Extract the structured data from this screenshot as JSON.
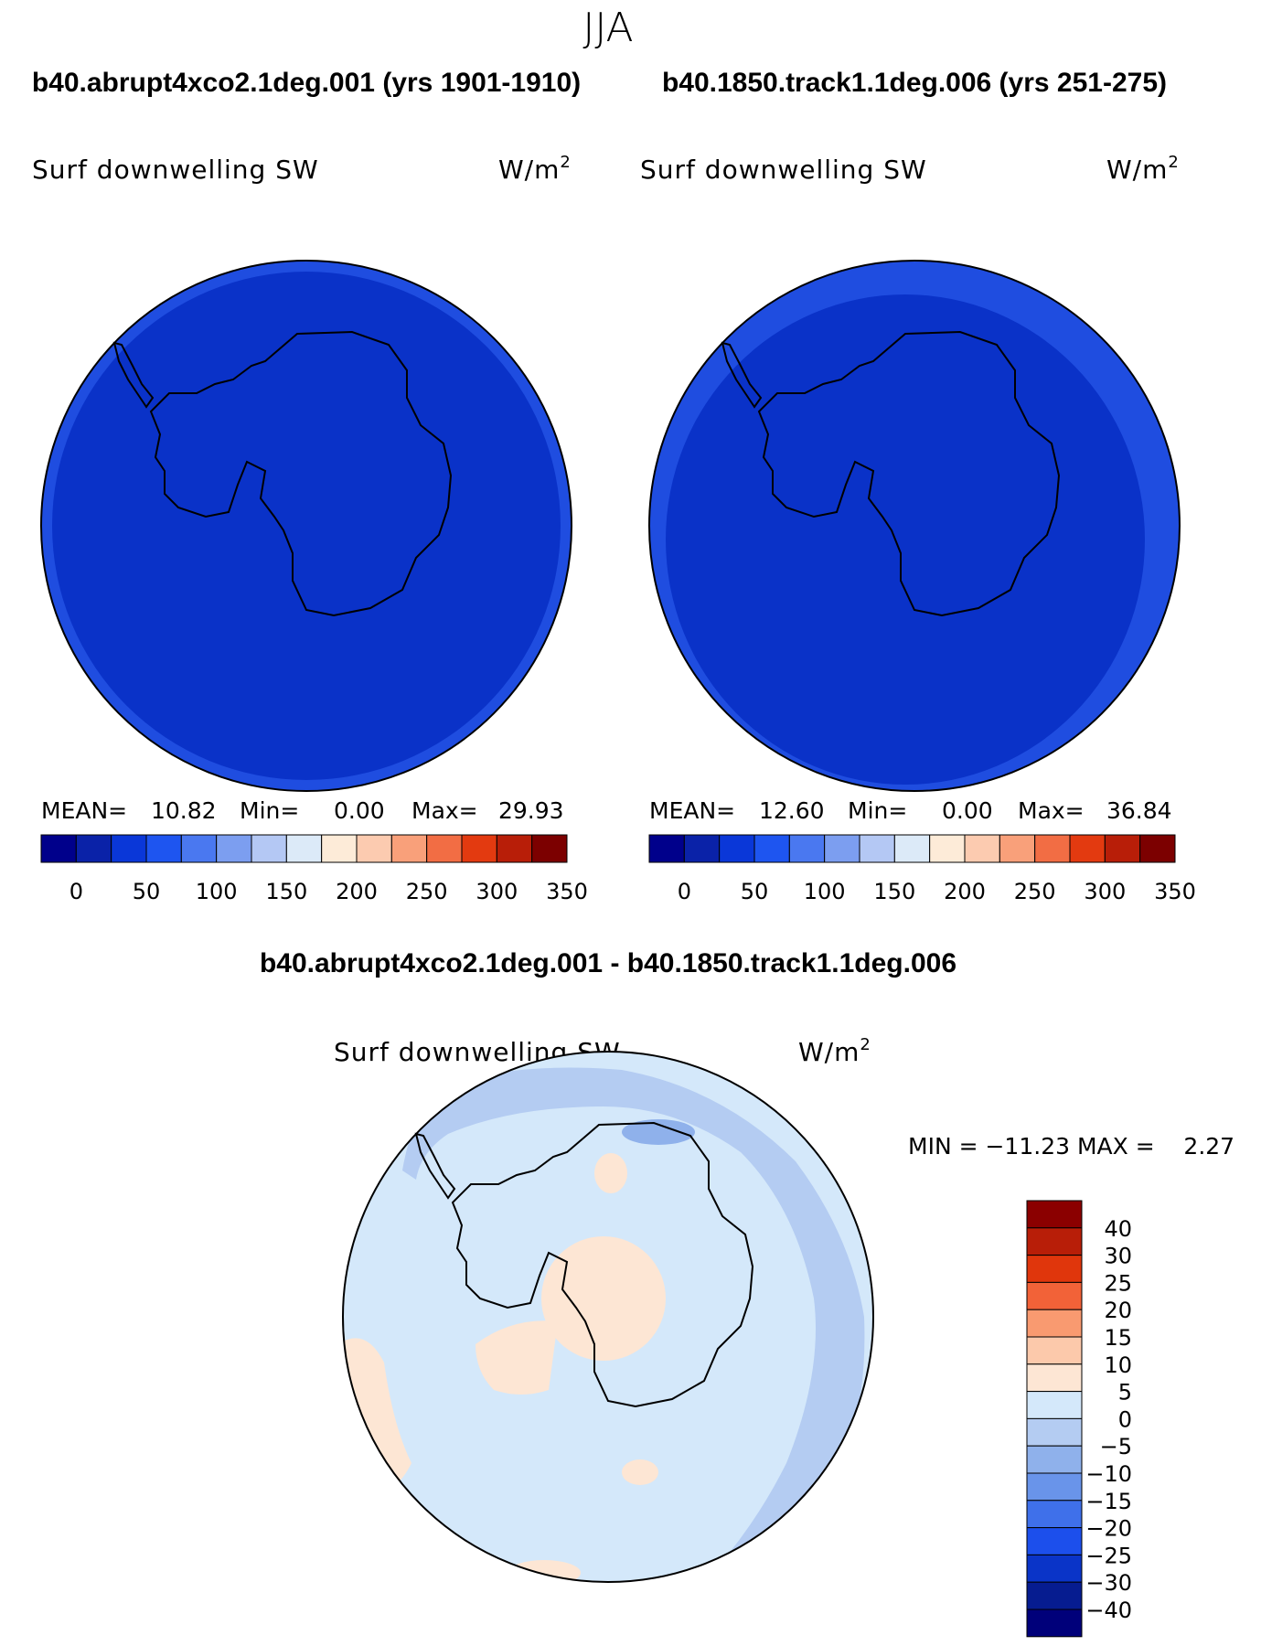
{
  "season_title": "JJA",
  "colors": {
    "land_outline": "#000000",
    "map_edge": "#000000",
    "ocean_fill_panel1": "#0a32c8",
    "ocean_fill_panel2": "#0a32c8",
    "outer_ring_panel2": "#1f4de0",
    "diff_base": "#d4e8fa",
    "diff_warm": "#fde6d4",
    "diff_cool1": "#b4ccf2",
    "diff_cool2": "#8fb1eb"
  },
  "panels": [
    {
      "title": "b40.abrupt4xco2.1deg.001 (yrs 1901-1910)",
      "variable": "Surf downwelling SW",
      "units": "W/m",
      "units_sup": "2",
      "stats_mean_label": "MEAN=",
      "stats_mean": "10.82",
      "stats_min_label": "Min=",
      "stats_min": "0.00",
      "stats_max_label": "Max=",
      "stats_max": "29.93"
    },
    {
      "title": "b40.1850.track1.1deg.006 (yrs 251-275)",
      "variable": "Surf downwelling SW",
      "units": "W/m",
      "units_sup": "2",
      "stats_mean_label": "MEAN=",
      "stats_mean": "12.60",
      "stats_min_label": "Min=",
      "stats_min": "0.00",
      "stats_max_label": "Max=",
      "stats_max": "36.84"
    }
  ],
  "abs_colorbar": {
    "colors": [
      "#00008b",
      "#0a22a8",
      "#0a37d8",
      "#1e55f0",
      "#4a78f0",
      "#7c9ef0",
      "#b4c8f4",
      "#dceaf8",
      "#fdebd8",
      "#fccbb0",
      "#f9a07a",
      "#f26d44",
      "#e33a10",
      "#b81e08",
      "#7c0000"
    ],
    "tick_labels": [
      "0",
      "50",
      "100",
      "150",
      "200",
      "250",
      "300",
      "350"
    ]
  },
  "diff_panel": {
    "title": "b40.abrupt4xco2.1deg.001 - b40.1850.track1.1deg.006",
    "variable": "Surf downwelling SW",
    "units": "W/m",
    "units_sup": "2",
    "minmax_text": "MIN = −11.23 MAX =    2.27"
  },
  "diff_colorbar": {
    "colors_top_to_bottom": [
      "#8b0000",
      "#b81e08",
      "#e0360c",
      "#f26238",
      "#f99a70",
      "#fcc9ab",
      "#fde6d4",
      "#d4e8fa",
      "#b4ccf2",
      "#8fb1eb",
      "#6994ea",
      "#3f70ea",
      "#1c4fec",
      "#0a34c8",
      "#061c90",
      "#00007a"
    ],
    "labels": [
      "40",
      "30",
      "25",
      "20",
      "15",
      "10",
      "5",
      "0",
      "−5",
      "−10",
      "−15",
      "−20",
      "−25",
      "−30",
      "−40"
    ]
  }
}
